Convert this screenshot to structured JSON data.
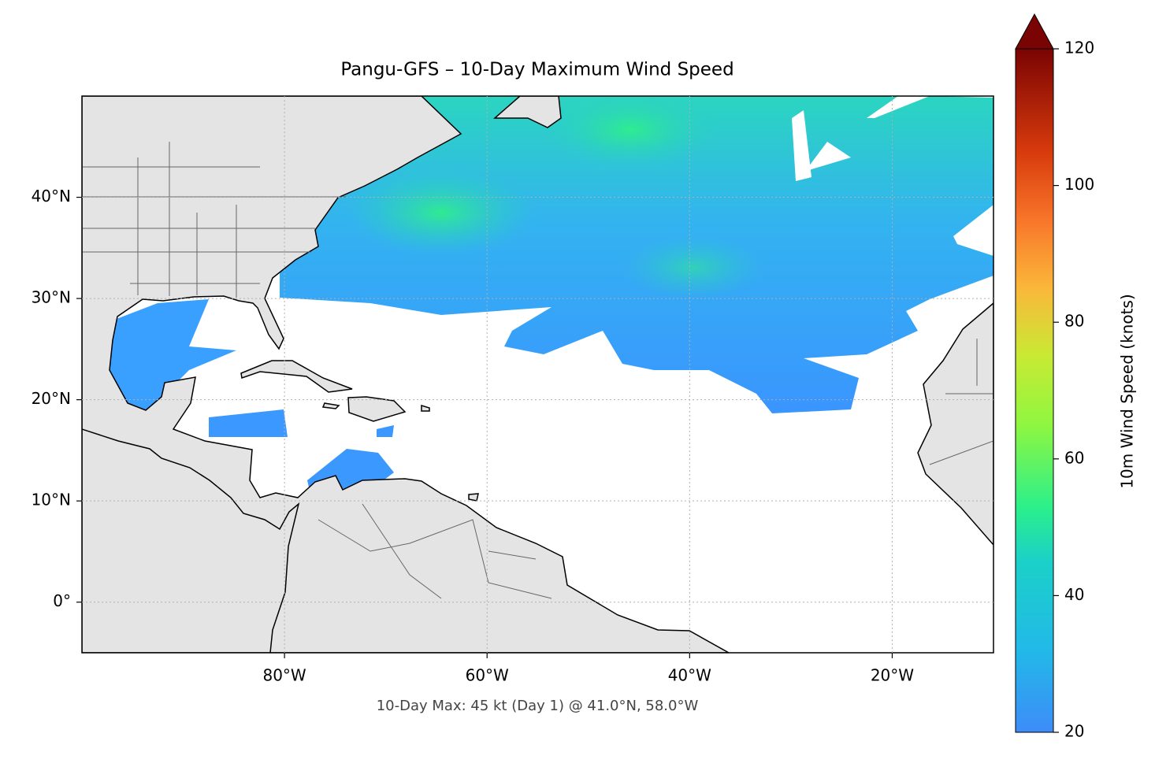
{
  "chart_data": {
    "type": "map",
    "title": "Pangu-GFS – 10-Day Maximum Wind Speed",
    "annotation": "10-Day Max: 45 kt (Day 1) @ 41.0°N, 58.0°W",
    "xlim": [
      -100,
      -10
    ],
    "ylim": [
      -5,
      50
    ],
    "xticks": [
      {
        "value": -80,
        "label": "80°W"
      },
      {
        "value": -60,
        "label": "60°W"
      },
      {
        "value": -40,
        "label": "40°W"
      },
      {
        "value": -20,
        "label": "20°W"
      }
    ],
    "yticks": [
      {
        "value": 0,
        "label": "0°"
      },
      {
        "value": 10,
        "label": "10°N"
      },
      {
        "value": 20,
        "label": "20°N"
      },
      {
        "value": 30,
        "label": "30°N"
      },
      {
        "value": 40,
        "label": "40°N"
      }
    ],
    "grid": true,
    "colorbar": {
      "label": "10m Wind Speed (knots)",
      "lim": [
        20,
        120
      ],
      "ticks": [
        20,
        40,
        60,
        80,
        100,
        120
      ]
    }
  }
}
